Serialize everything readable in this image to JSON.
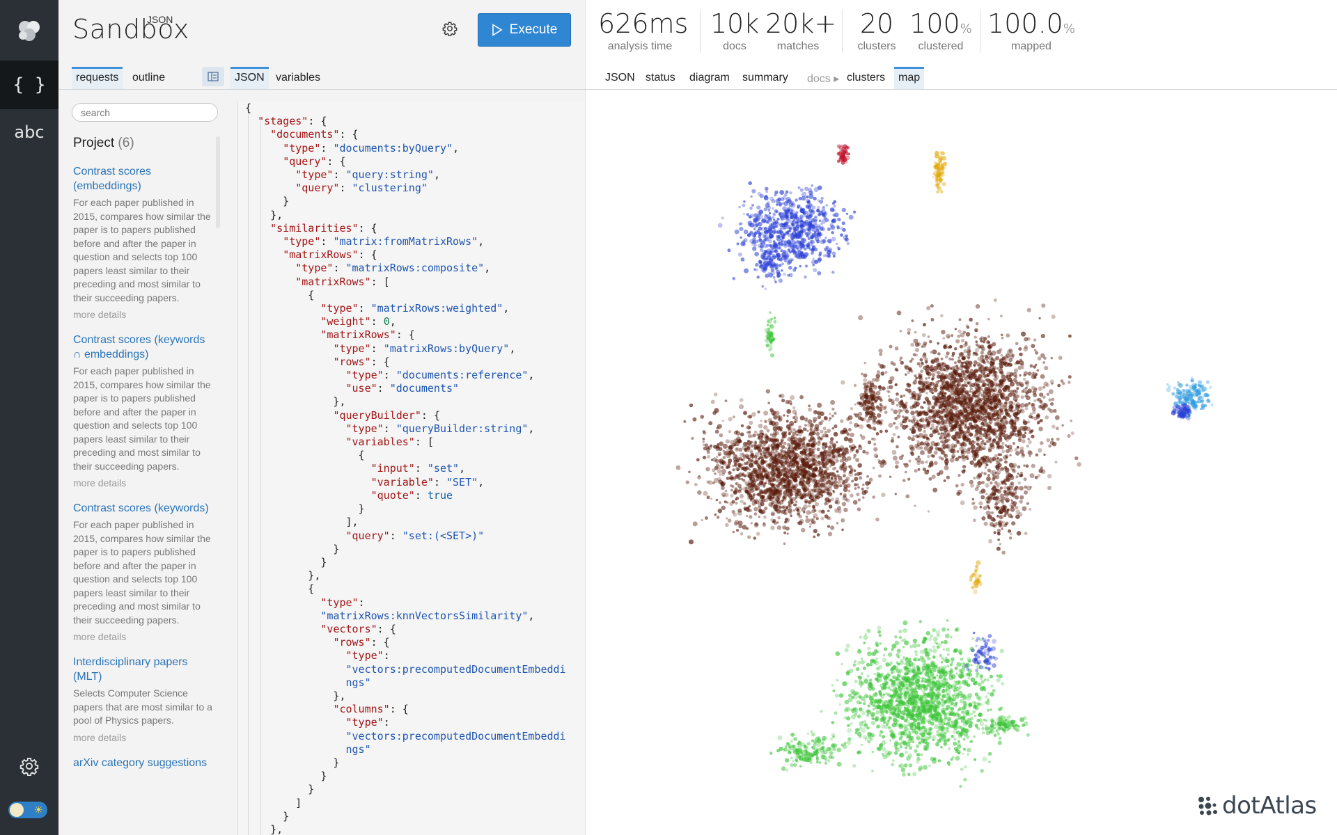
{
  "app": {
    "title_small": "JSON",
    "title_big": "Sandbox",
    "execute_label": "Execute"
  },
  "rail": {
    "json_glyph": "{ }",
    "abc_label": "abc"
  },
  "left_tabs": [
    {
      "label": "requests",
      "active": true
    },
    {
      "label": "outline",
      "active": false
    }
  ],
  "editor_tabs": [
    {
      "label": "JSON",
      "active": true
    },
    {
      "label": "variables",
      "active": false
    }
  ],
  "search": {
    "placeholder": "search"
  },
  "project": {
    "label": "Project",
    "count": "(6)"
  },
  "requests": [
    {
      "title": "Contrast scores (embeddings)",
      "desc": "For each paper published in 2015, compares how similar the paper is to papers published before and after the paper in question and selects top 100 papers least similar to their preceding and most similar to their succeeding papers.",
      "more": "more details"
    },
    {
      "title": "Contrast scores (keywords ∩ embeddings)",
      "desc": "For each paper published in 2015, compares how similar the paper is to papers published before and after the paper in question and selects top 100 papers least similar to their preceding and most similar to their succeeding papers.",
      "more": "more details"
    },
    {
      "title": "Contrast scores (keywords)",
      "desc": "For each paper published in 2015, compares how similar the paper is to papers published before and after the paper in question and selects top 100 papers least similar to their preceding and most similar to their succeeding papers.",
      "more": "more details"
    },
    {
      "title": "Interdisciplinary papers (MLT)",
      "desc": "Selects Computer Science papers that are most similar to a pool of Physics papers.",
      "more": "more details"
    },
    {
      "title": "arXiv category suggestions",
      "desc": "",
      "more": ""
    }
  ],
  "stats": [
    {
      "value": "626ms",
      "unit": "",
      "label": "analysis time"
    },
    {
      "value": "10k",
      "unit": "",
      "label": "docs"
    },
    {
      "value": "20k+",
      "unit": "",
      "label": "matches"
    },
    {
      "value": "20",
      "unit": "",
      "label": "clusters"
    },
    {
      "value": "100",
      "unit": "%",
      "label": "clustered"
    },
    {
      "value": "100.0",
      "unit": "%",
      "label": "mapped"
    }
  ],
  "result_tabs": [
    {
      "label": "JSON",
      "active": false
    },
    {
      "label": "status",
      "active": false
    },
    {
      "label": "diagram",
      "active": false
    },
    {
      "label": "summary",
      "active": false
    },
    {
      "label": "docs ▸",
      "active": false,
      "muted": true
    },
    {
      "label": "clusters",
      "active": false
    },
    {
      "label": "map",
      "active": true
    }
  ],
  "brand": {
    "name": "dotAtlas"
  },
  "colors": {
    "accent": "#2f86d3",
    "rail": "#2b3036",
    "link": "#2a74b8"
  },
  "map_clusters": [
    {
      "name": "blue",
      "color": "#2a3fd6"
    },
    {
      "name": "brown",
      "color": "#5a1c0c"
    },
    {
      "name": "green",
      "color": "#3ec53a"
    },
    {
      "name": "cyan",
      "color": "#2e9be0"
    },
    {
      "name": "gold",
      "color": "#e2a90c"
    },
    {
      "name": "red",
      "color": "#c0112b"
    }
  ],
  "code_lines": [
    [
      [
        "p",
        "{"
      ]
    ],
    [
      [
        "p",
        "  "
      ],
      [
        "k",
        "\"stages\""
      ],
      [
        "p",
        ": {"
      ]
    ],
    [
      [
        "p",
        "    "
      ],
      [
        "k",
        "\"documents\""
      ],
      [
        "p",
        ": {"
      ]
    ],
    [
      [
        "p",
        "      "
      ],
      [
        "k",
        "\"type\""
      ],
      [
        "p",
        ": "
      ],
      [
        "s",
        "\"documents:byQuery\""
      ],
      [
        "p",
        ","
      ]
    ],
    [
      [
        "p",
        "      "
      ],
      [
        "k",
        "\"query\""
      ],
      [
        "p",
        ": {"
      ]
    ],
    [
      [
        "p",
        "        "
      ],
      [
        "k",
        "\"type\""
      ],
      [
        "p",
        ": "
      ],
      [
        "s",
        "\"query:string\""
      ],
      [
        "p",
        ","
      ]
    ],
    [
      [
        "p",
        "        "
      ],
      [
        "k",
        "\"query\""
      ],
      [
        "p",
        ": "
      ],
      [
        "s",
        "\"clustering\""
      ]
    ],
    [
      [
        "p",
        "      }"
      ]
    ],
    [
      [
        "p",
        "    },"
      ]
    ],
    [
      [
        "p",
        "    "
      ],
      [
        "k",
        "\"similarities\""
      ],
      [
        "p",
        ": {"
      ]
    ],
    [
      [
        "p",
        "      "
      ],
      [
        "k",
        "\"type\""
      ],
      [
        "p",
        ": "
      ],
      [
        "s",
        "\"matrix:fromMatrixRows\""
      ],
      [
        "p",
        ","
      ]
    ],
    [
      [
        "p",
        "      "
      ],
      [
        "k",
        "\"matrixRows\""
      ],
      [
        "p",
        ": {"
      ]
    ],
    [
      [
        "p",
        "        "
      ],
      [
        "k",
        "\"type\""
      ],
      [
        "p",
        ": "
      ],
      [
        "s",
        "\"matrixRows:composite\""
      ],
      [
        "p",
        ","
      ]
    ],
    [
      [
        "p",
        "        "
      ],
      [
        "k",
        "\"matrixRows\""
      ],
      [
        "p",
        ": ["
      ]
    ],
    [
      [
        "p",
        "          {"
      ]
    ],
    [
      [
        "p",
        "            "
      ],
      [
        "k",
        "\"type\""
      ],
      [
        "p",
        ": "
      ],
      [
        "s",
        "\"matrixRows:weighted\""
      ],
      [
        "p",
        ","
      ]
    ],
    [
      [
        "p",
        "            "
      ],
      [
        "k",
        "\"weight\""
      ],
      [
        "p",
        ": "
      ],
      [
        "n",
        "0"
      ],
      [
        "p",
        ","
      ]
    ],
    [
      [
        "p",
        "            "
      ],
      [
        "k",
        "\"matrixRows\""
      ],
      [
        "p",
        ": {"
      ]
    ],
    [
      [
        "p",
        "              "
      ],
      [
        "k",
        "\"type\""
      ],
      [
        "p",
        ": "
      ],
      [
        "s",
        "\"matrixRows:byQuery\""
      ],
      [
        "p",
        ","
      ]
    ],
    [
      [
        "p",
        "              "
      ],
      [
        "k",
        "\"rows\""
      ],
      [
        "p",
        ": {"
      ]
    ],
    [
      [
        "p",
        "                "
      ],
      [
        "k",
        "\"type\""
      ],
      [
        "p",
        ": "
      ],
      [
        "s",
        "\"documents:reference\""
      ],
      [
        "p",
        ","
      ]
    ],
    [
      [
        "p",
        "                "
      ],
      [
        "k",
        "\"use\""
      ],
      [
        "p",
        ": "
      ],
      [
        "s",
        "\"documents\""
      ]
    ],
    [
      [
        "p",
        "              },"
      ]
    ],
    [
      [
        "p",
        "              "
      ],
      [
        "k",
        "\"queryBuilder\""
      ],
      [
        "p",
        ": {"
      ]
    ],
    [
      [
        "p",
        "                "
      ],
      [
        "k",
        "\"type\""
      ],
      [
        "p",
        ": "
      ],
      [
        "s",
        "\"queryBuilder:string\""
      ],
      [
        "p",
        ","
      ]
    ],
    [
      [
        "p",
        "                "
      ],
      [
        "k",
        "\"variables\""
      ],
      [
        "p",
        ": ["
      ]
    ],
    [
      [
        "p",
        "                  {"
      ]
    ],
    [
      [
        "p",
        "                    "
      ],
      [
        "k",
        "\"input\""
      ],
      [
        "p",
        ": "
      ],
      [
        "s",
        "\"set\""
      ],
      [
        "p",
        ","
      ]
    ],
    [
      [
        "p",
        "                    "
      ],
      [
        "k",
        "\"variable\""
      ],
      [
        "p",
        ": "
      ],
      [
        "s",
        "\"SET\""
      ],
      [
        "p",
        ","
      ]
    ],
    [
      [
        "p",
        "                    "
      ],
      [
        "k",
        "\"quote\""
      ],
      [
        "p",
        ": "
      ],
      [
        "b",
        "true"
      ]
    ],
    [
      [
        "p",
        "                  }"
      ]
    ],
    [
      [
        "p",
        "                ],"
      ]
    ],
    [
      [
        "p",
        "                "
      ],
      [
        "k",
        "\"query\""
      ],
      [
        "p",
        ": "
      ],
      [
        "s",
        "\"set:(<SET>)\""
      ]
    ],
    [
      [
        "p",
        "              }"
      ]
    ],
    [
      [
        "p",
        "            }"
      ]
    ],
    [
      [
        "p",
        "          },"
      ]
    ],
    [
      [
        "p",
        "          {"
      ]
    ],
    [
      [
        "p",
        "            "
      ],
      [
        "k",
        "\"type\""
      ],
      [
        "p",
        ":"
      ]
    ],
    [
      [
        "p",
        "            "
      ],
      [
        "s",
        "\"matrixRows:knnVectorsSimilarity\""
      ],
      [
        "p",
        ","
      ]
    ],
    [
      [
        "p",
        "            "
      ],
      [
        "k",
        "\"vectors\""
      ],
      [
        "p",
        ": {"
      ]
    ],
    [
      [
        "p",
        "              "
      ],
      [
        "k",
        "\"rows\""
      ],
      [
        "p",
        ": {"
      ]
    ],
    [
      [
        "p",
        "                "
      ],
      [
        "k",
        "\"type\""
      ],
      [
        "p",
        ":"
      ]
    ],
    [
      [
        "p",
        "                "
      ],
      [
        "s",
        "\"vectors:precomputedDocumentEmbeddi"
      ]
    ],
    [
      [
        "p",
        "                "
      ],
      [
        "s",
        "ngs\""
      ]
    ],
    [
      [
        "p",
        "              },"
      ]
    ],
    [
      [
        "p",
        "              "
      ],
      [
        "k",
        "\"columns\""
      ],
      [
        "p",
        ": {"
      ]
    ],
    [
      [
        "p",
        "                "
      ],
      [
        "k",
        "\"type\""
      ],
      [
        "p",
        ":"
      ]
    ],
    [
      [
        "p",
        "                "
      ],
      [
        "s",
        "\"vectors:precomputedDocumentEmbeddi"
      ]
    ],
    [
      [
        "p",
        "                "
      ],
      [
        "s",
        "ngs\""
      ]
    ],
    [
      [
        "p",
        "              }"
      ]
    ],
    [
      [
        "p",
        "            }"
      ]
    ],
    [
      [
        "p",
        "          }"
      ]
    ],
    [
      [
        "p",
        "        ]"
      ]
    ],
    [
      [
        "p",
        "      }"
      ]
    ],
    [
      [
        "p",
        "    },"
      ]
    ]
  ]
}
